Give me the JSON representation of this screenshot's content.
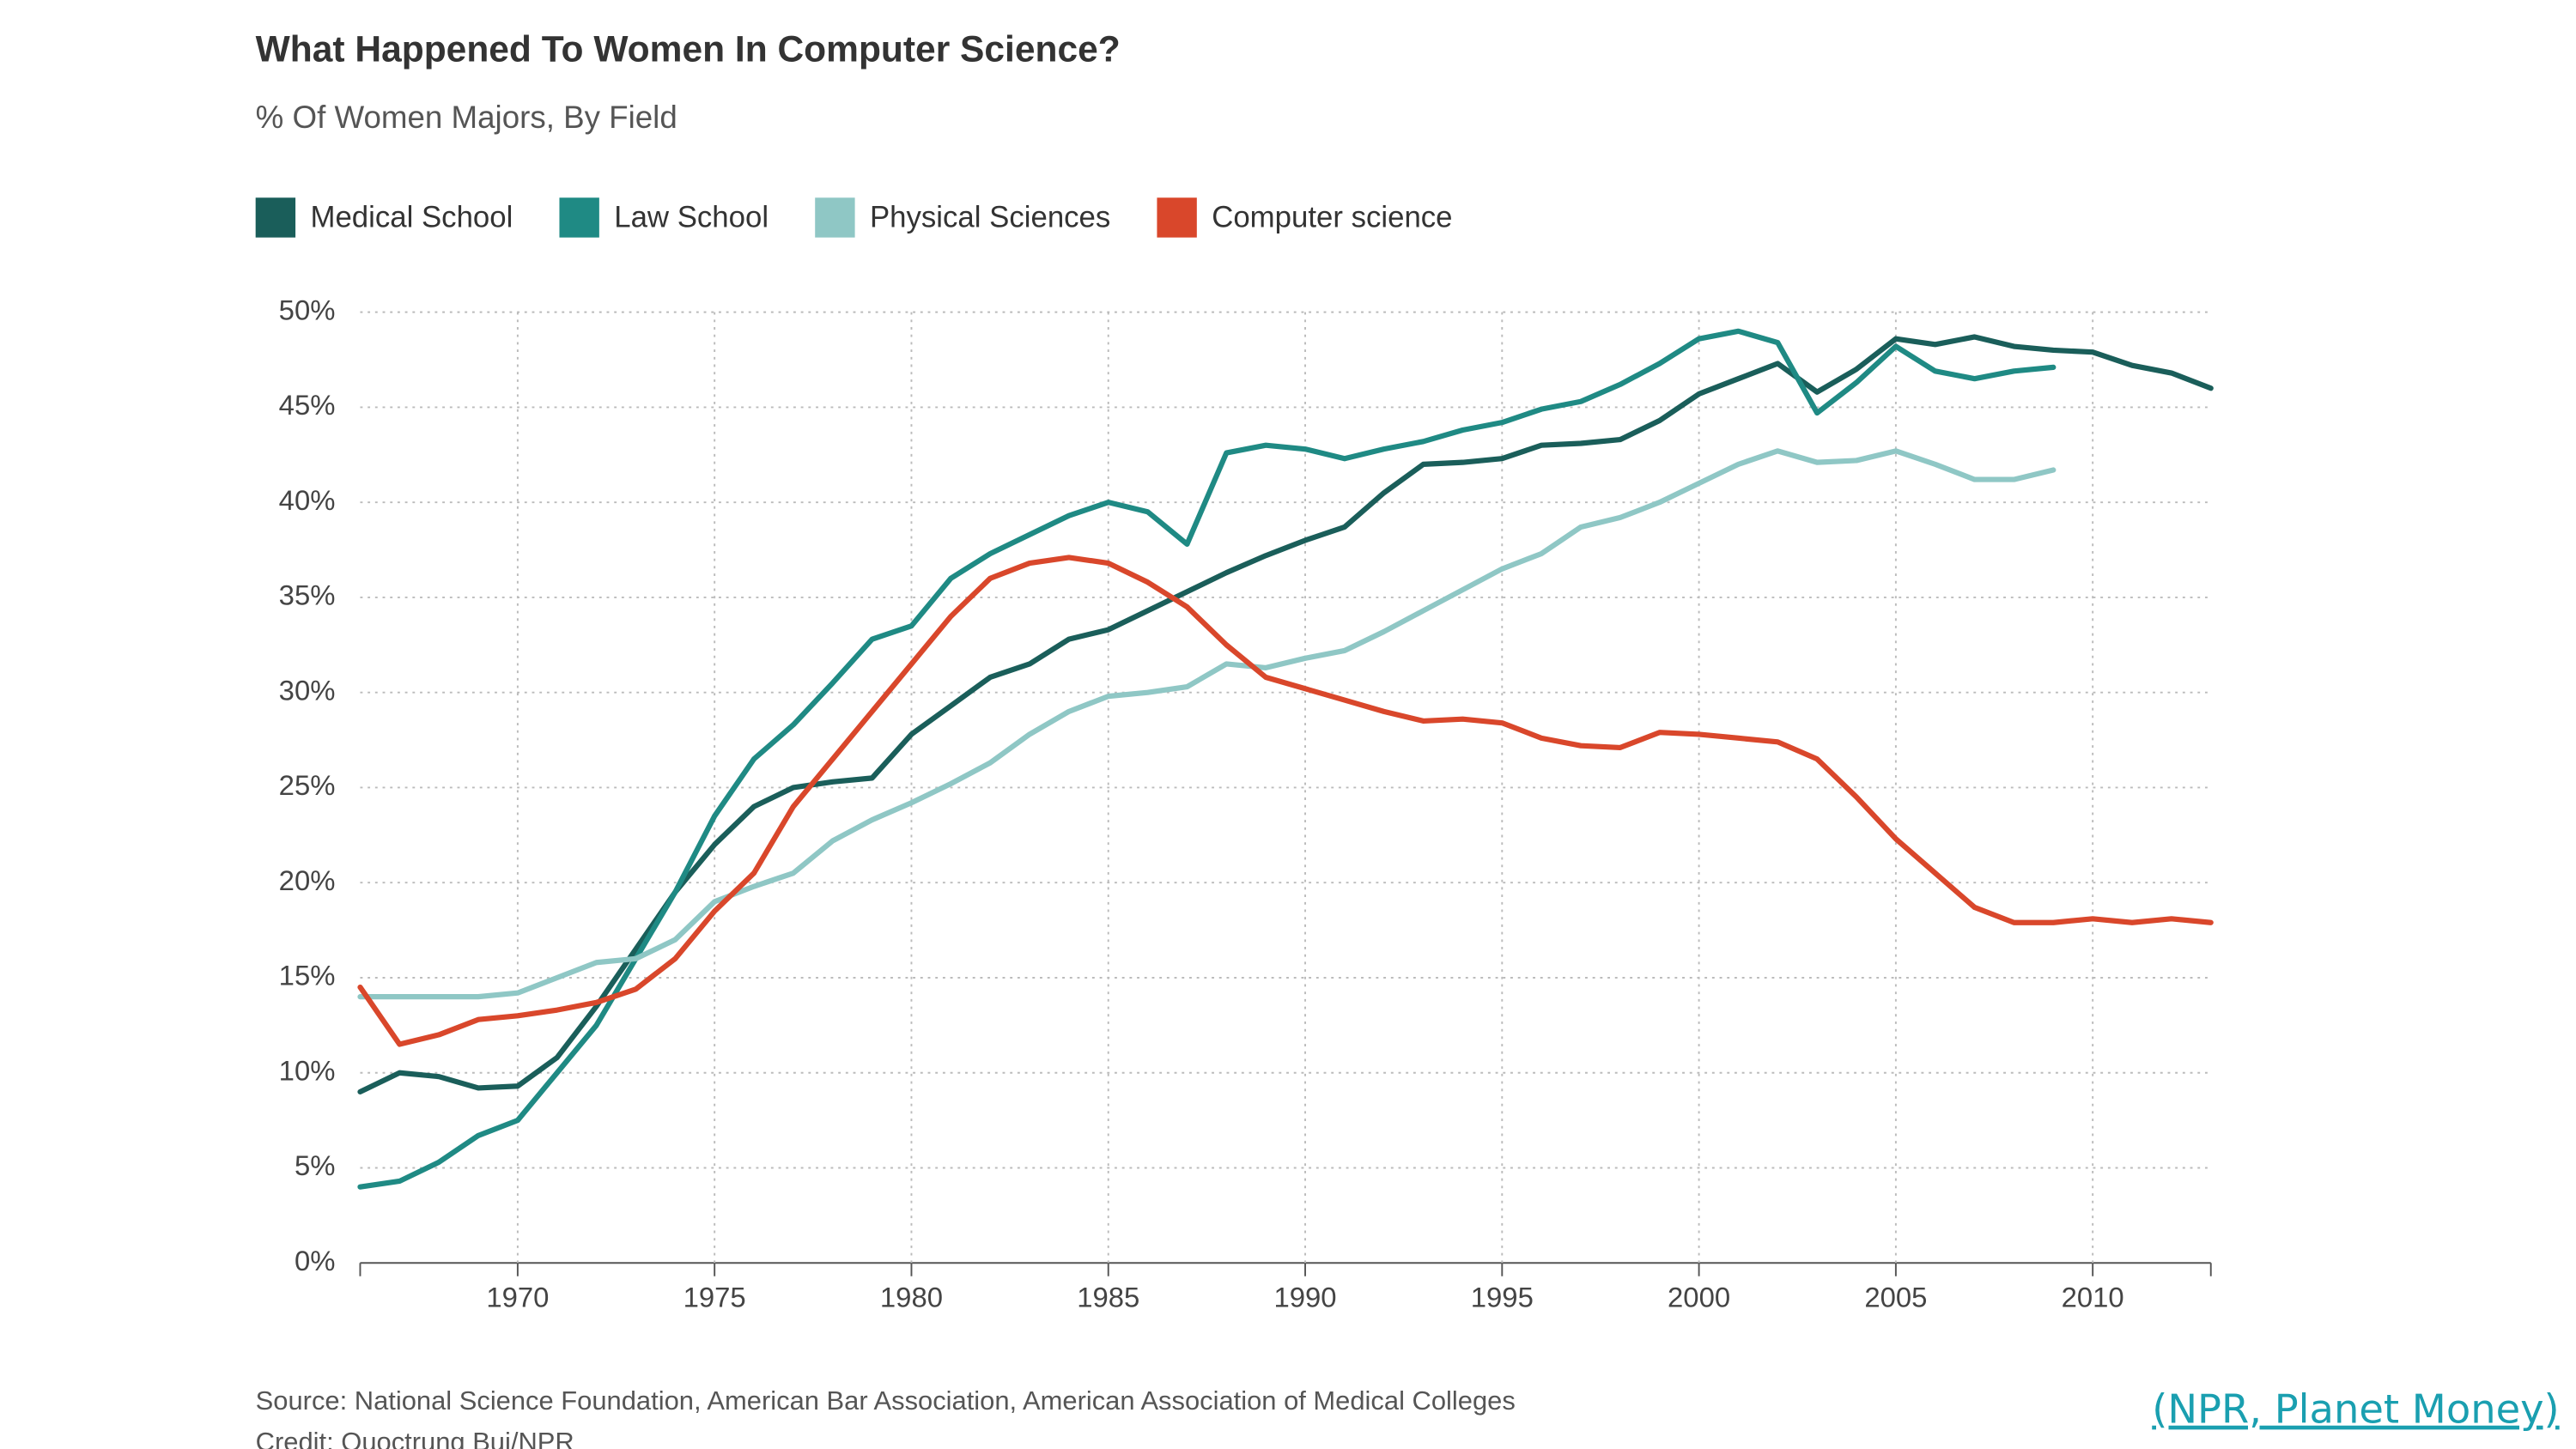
{
  "chart_data": {
    "type": "line",
    "title": "What Happened To Women In Computer Science?",
    "subtitle": "% Of Women Majors, By Field",
    "source": "Source: National Science Foundation, American Bar Association, American Association of Medical Colleges",
    "credit": "Credit: Quoctrung Bui/NPR",
    "link": "(NPR, Planet Money)",
    "x": [
      1966,
      1967,
      1968,
      1969,
      1970,
      1971,
      1972,
      1973,
      1974,
      1975,
      1976,
      1977,
      1978,
      1979,
      1980,
      1981,
      1982,
      1983,
      1984,
      1985,
      1986,
      1987,
      1988,
      1989,
      1990,
      1991,
      1992,
      1993,
      1994,
      1995,
      1996,
      1997,
      1998,
      1999,
      2000,
      2001,
      2002,
      2003,
      2004,
      2005,
      2006,
      2007,
      2008,
      2009,
      2010,
      2011,
      2012,
      2013
    ],
    "series": [
      {
        "name": "Medical School",
        "color": "#1a5e5a",
        "values": [
          9,
          10,
          9.8,
          9.2,
          9.3,
          10.8,
          13.5,
          16.5,
          19.5,
          22,
          24,
          25,
          25.3,
          25.5,
          27.8,
          29.3,
          30.8,
          31.5,
          32.8,
          33.3,
          34.3,
          35.3,
          36.3,
          37.2,
          38,
          38.7,
          40.5,
          42,
          42.1,
          42.3,
          43,
          43.1,
          43.3,
          44.3,
          45.7,
          46.5,
          47.3,
          45.8,
          47,
          48.6,
          48.3,
          48.7,
          48.2,
          48,
          47.9,
          47.2,
          46.8,
          46
        ]
      },
      {
        "name": "Law School",
        "color": "#1f8a84",
        "values": [
          4,
          4.3,
          5.3,
          6.7,
          7.5,
          10,
          12.5,
          16,
          19.5,
          23.5,
          26.5,
          28.3,
          30.5,
          32.8,
          33.5,
          36,
          37.3,
          38.3,
          39.3,
          40,
          39.5,
          37.8,
          42.6,
          43,
          42.8,
          42.3,
          42.8,
          43.2,
          43.8,
          44.2,
          44.9,
          45.3,
          46.2,
          47.3,
          48.6,
          49,
          48.4,
          44.7,
          46.3,
          48.2,
          46.9,
          46.5,
          46.9,
          47.1,
          null,
          null,
          null,
          null
        ]
      },
      {
        "name": "Physical Sciences",
        "color": "#8fc7c5",
        "values": [
          14,
          14,
          14,
          14,
          14.2,
          15,
          15.8,
          16,
          17,
          19,
          19.8,
          20.5,
          22.2,
          23.3,
          24.2,
          25.2,
          26.3,
          27.8,
          29,
          29.8,
          30,
          30.3,
          31.5,
          31.3,
          31.8,
          32.2,
          33.2,
          34.3,
          35.4,
          36.5,
          37.3,
          38.7,
          39.2,
          40,
          41,
          42,
          42.7,
          42.1,
          42.2,
          42.7,
          42,
          41.2,
          41.2,
          41.7,
          null,
          null,
          null,
          null
        ]
      },
      {
        "name": "Computer science",
        "color": "#d9472b",
        "values": [
          14.5,
          11.5,
          12,
          12.8,
          13,
          13.3,
          13.7,
          14.4,
          16,
          18.5,
          20.5,
          24,
          26.5,
          29,
          31.5,
          34,
          36,
          36.8,
          37.1,
          36.8,
          35.8,
          34.5,
          32.5,
          30.8,
          30.2,
          29.6,
          29,
          28.5,
          28.6,
          28.4,
          27.6,
          27.2,
          27.1,
          27.9,
          27.8,
          27.6,
          27.4,
          26.5,
          24.5,
          22.3,
          20.5,
          18.7,
          17.9,
          17.9,
          18.1,
          17.9,
          18.1,
          17.9
        ]
      }
    ],
    "xlim": [
      1966,
      2013
    ],
    "xticks": [
      1970,
      1975,
      1980,
      1985,
      1990,
      1995,
      2000,
      2005,
      2010
    ],
    "ylim": [
      0,
      50
    ],
    "yticks": [
      {
        "value": 0,
        "label": "0%"
      },
      {
        "value": 5,
        "label": "5%"
      },
      {
        "value": 10,
        "label": "10%"
      },
      {
        "value": 15,
        "label": "15%"
      },
      {
        "value": 20,
        "label": "20%"
      },
      {
        "value": 25,
        "label": "25%"
      },
      {
        "value": 30,
        "label": "30%"
      },
      {
        "value": 35,
        "label": "35%"
      },
      {
        "value": 40,
        "label": "40%"
      },
      {
        "value": 45,
        "label": "45%"
      },
      {
        "value": 50,
        "label": "50%"
      }
    ],
    "grid": true,
    "legend": "top"
  }
}
